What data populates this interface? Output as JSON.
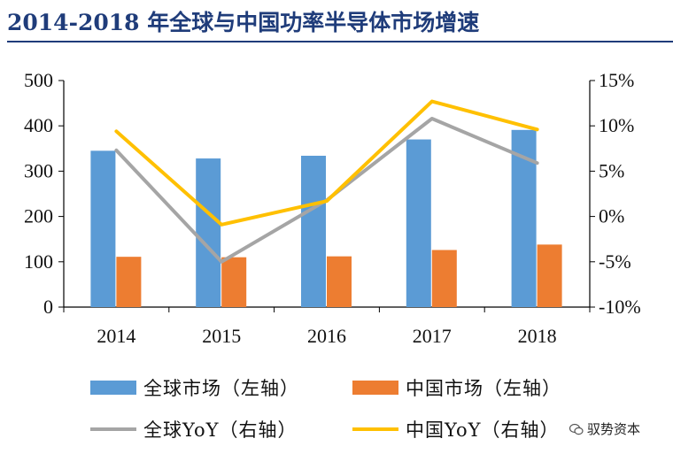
{
  "title": "2014-2018 年全球与中国功率半导体市场增速",
  "watermark": "驭势资本",
  "colors": {
    "title": "#1f3c7a",
    "global_bar": "#5b9bd5",
    "china_bar": "#ed7d31",
    "global_line": "#a5a5a5",
    "china_line": "#ffc000"
  },
  "chart_data": {
    "type": "bar",
    "categories": [
      "2014",
      "2015",
      "2016",
      "2017",
      "2018"
    ],
    "left_axis": {
      "ylim": [
        0,
        500
      ],
      "ticks": [
        "0",
        "100",
        "200",
        "300",
        "400",
        "500"
      ]
    },
    "right_axis": {
      "ylim": [
        -10,
        15
      ],
      "ticks": [
        "-10%",
        "-5%",
        "0%",
        "5%",
        "10%",
        "15%"
      ]
    },
    "series": [
      {
        "name": "全球市场（左轴）",
        "type": "bar",
        "axis": "left",
        "values": [
          345,
          328,
          334,
          370,
          391
        ]
      },
      {
        "name": "中国市场（左轴）",
        "type": "bar",
        "axis": "left",
        "values": [
          111,
          110,
          112,
          126,
          138
        ]
      },
      {
        "name": "全球YoY（右轴）",
        "type": "line",
        "axis": "right",
        "values": [
          7.3,
          -5.0,
          1.8,
          10.8,
          5.9
        ]
      },
      {
        "name": "中国YoY（右轴）",
        "type": "line",
        "axis": "right",
        "values": [
          9.4,
          -0.9,
          1.7,
          12.7,
          9.6
        ]
      }
    ],
    "legend_position": "bottom",
    "grid": false
  }
}
